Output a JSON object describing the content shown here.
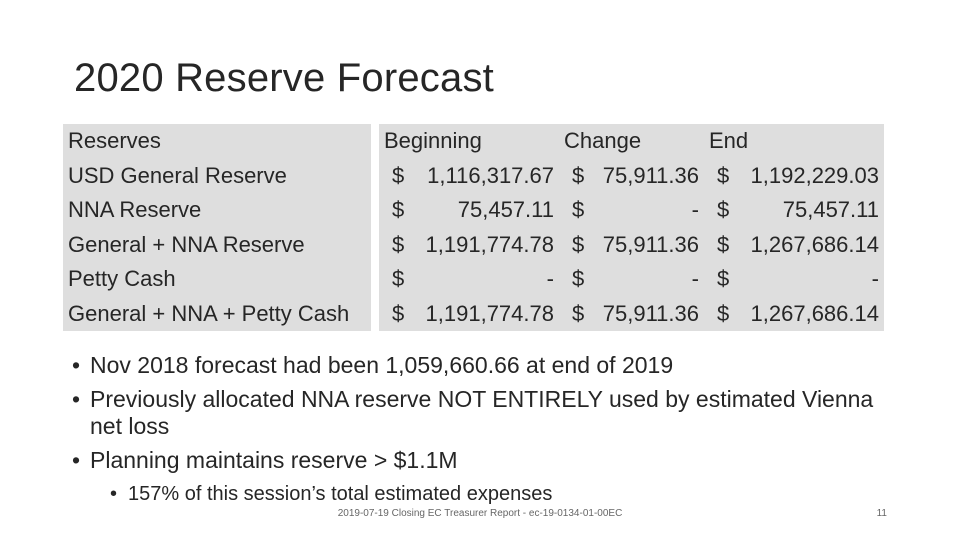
{
  "title": "2020 Reserve Forecast",
  "table": {
    "headers": [
      "Reserves",
      "Beginning",
      "Change",
      "End"
    ],
    "rows": [
      {
        "label": "USD General Reserve",
        "beginning": [
          "$",
          "1,116,317.67"
        ],
        "change": [
          "$",
          "75,911.36"
        ],
        "end": [
          "$",
          "1,192,229.03"
        ]
      },
      {
        "label": "NNA Reserve",
        "beginning": [
          "$",
          "75,457.11"
        ],
        "change": [
          "$",
          "-"
        ],
        "end": [
          "$",
          "75,457.11"
        ]
      },
      {
        "label": "General + NNA Reserve",
        "beginning": [
          "$",
          "1,191,774.78"
        ],
        "change": [
          "$",
          "75,911.36"
        ],
        "end": [
          "$",
          "1,267,686.14"
        ]
      },
      {
        "label": "Petty Cash",
        "beginning": [
          "$",
          "-"
        ],
        "change": [
          "$",
          "-"
        ],
        "end": [
          "$",
          "-"
        ]
      },
      {
        "label": "General + NNA + Petty Cash",
        "beginning": [
          "$",
          "1,191,774.78"
        ],
        "change": [
          "$",
          "75,911.36"
        ],
        "end": [
          "$",
          "1,267,686.14"
        ]
      }
    ]
  },
  "bullets": [
    "Nov 2018 forecast had been 1,059,660.66 at end of 2019",
    "Previously allocated NNA reserve NOT ENTIRELY used by estimated Vienna net loss",
    "Planning maintains reserve > $1.1M"
  ],
  "sub_bullets": [
    "157% of this session’s total estimated expenses"
  ],
  "footer": "2019-07-19 Closing EC Treasurer Report - ec-19-0134-01-00EC",
  "page_number": "11"
}
